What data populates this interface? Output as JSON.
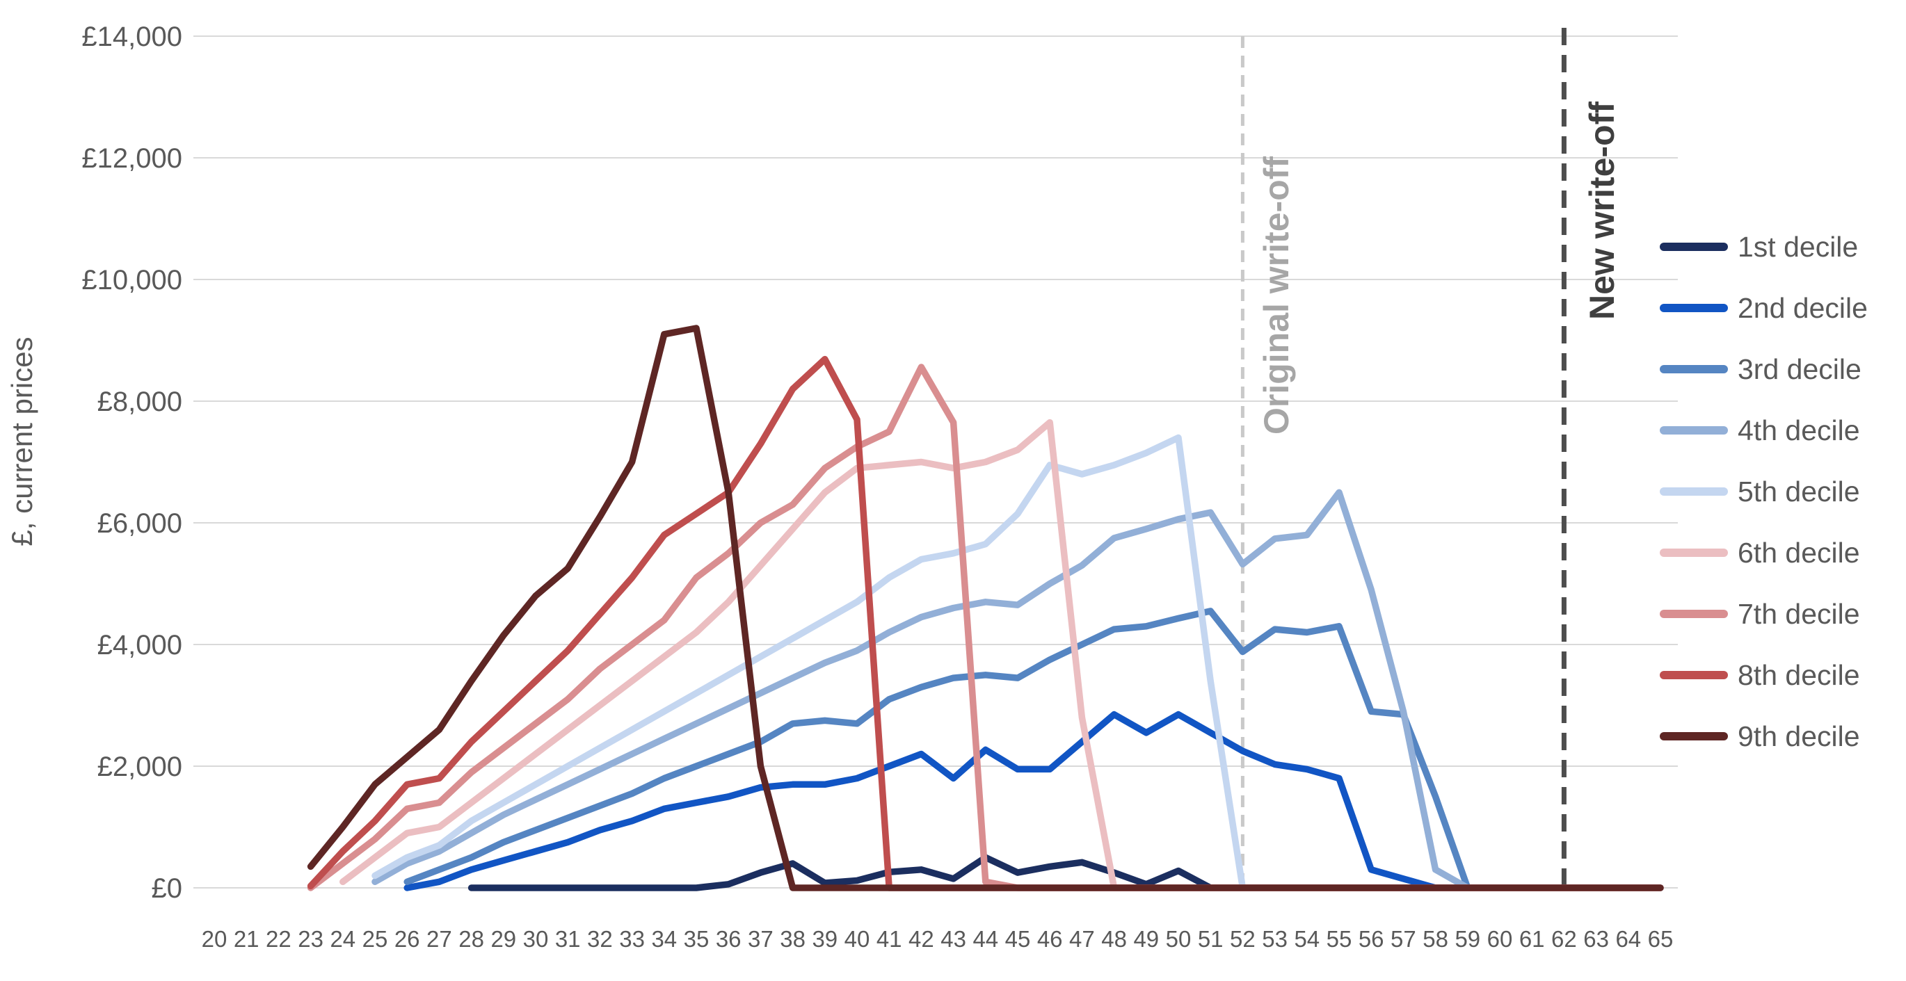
{
  "chart_data": {
    "type": "line",
    "title": "",
    "xlabel": "",
    "ylabel": "£, current prices",
    "ylim": [
      0,
      14000
    ],
    "y_tick_step": 2000,
    "y_tick_labels": [
      "£0",
      "£2,000",
      "£4,000",
      "£6,000",
      "£8,000",
      "£10,000",
      "£12,000",
      "£14,000"
    ],
    "x": [
      20,
      21,
      22,
      23,
      24,
      25,
      26,
      27,
      28,
      29,
      30,
      31,
      32,
      33,
      34,
      35,
      36,
      37,
      38,
      39,
      40,
      41,
      42,
      43,
      44,
      45,
      46,
      47,
      48,
      49,
      50,
      51,
      52,
      53,
      54,
      55,
      56,
      57,
      58,
      59,
      60,
      61,
      62,
      63,
      64,
      65
    ],
    "grid": true,
    "legend_position": "right",
    "annotations": [
      {
        "label": "Original write-off",
        "x": 52,
        "line_color": "#c9c9c9",
        "label_color": "#a6a6a6",
        "style": "dashed"
      },
      {
        "label": "New write-off",
        "x": 62,
        "line_color": "#4d4d4d",
        "label_color": "#3f3f3f",
        "style": "dashed"
      }
    ],
    "series": [
      {
        "name": "1st decile",
        "color": "#1b2e5f",
        "values": [
          null,
          null,
          null,
          null,
          null,
          null,
          null,
          null,
          0,
          0,
          0,
          0,
          0,
          0,
          0,
          0,
          60,
          250,
          400,
          80,
          120,
          260,
          300,
          150,
          500,
          250,
          350,
          420,
          250,
          60,
          280,
          0,
          0,
          0,
          0,
          0,
          0,
          0,
          0,
          0,
          0,
          0,
          0,
          0,
          0,
          0
        ]
      },
      {
        "name": "2nd decile",
        "color": "#1155c4",
        "values": [
          null,
          null,
          null,
          null,
          null,
          null,
          0,
          100,
          300,
          450,
          600,
          750,
          950,
          1100,
          1300,
          1400,
          1500,
          1650,
          1700,
          1700,
          1800,
          2000,
          2200,
          1800,
          2270,
          1950,
          1950,
          2400,
          2850,
          2550,
          2850,
          2550,
          2250,
          2030,
          1950,
          1800,
          300,
          150,
          0,
          0,
          0,
          0,
          0,
          0,
          0,
          0
        ]
      },
      {
        "name": "3rd decile",
        "color": "#5585c2",
        "values": [
          null,
          null,
          null,
          null,
          null,
          null,
          100,
          300,
          500,
          750,
          950,
          1150,
          1350,
          1550,
          1800,
          2000,
          2200,
          2400,
          2700,
          2750,
          2700,
          3100,
          3300,
          3450,
          3500,
          3450,
          3750,
          4000,
          4250,
          4300,
          4430,
          4550,
          3880,
          4250,
          4200,
          4300,
          2900,
          2850,
          1500,
          0,
          0,
          0,
          0,
          0,
          0,
          0
        ]
      },
      {
        "name": "4th decile",
        "color": "#92afd7",
        "values": [
          null,
          null,
          null,
          null,
          null,
          100,
          400,
          600,
          900,
          1200,
          1450,
          1700,
          1950,
          2200,
          2450,
          2700,
          2950,
          3200,
          3450,
          3700,
          3900,
          4200,
          4450,
          4600,
          4700,
          4650,
          5000,
          5300,
          5750,
          5900,
          6060,
          6170,
          5320,
          5740,
          5800,
          6500,
          4900,
          2900,
          300,
          0,
          0,
          0,
          0,
          0,
          0,
          0
        ]
      },
      {
        "name": "5th decile",
        "color": "#c4d6f0",
        "values": [
          null,
          null,
          null,
          null,
          null,
          200,
          500,
          700,
          1100,
          1400,
          1700,
          2000,
          2300,
          2600,
          2900,
          3200,
          3500,
          3800,
          4100,
          4400,
          4700,
          5100,
          5400,
          5500,
          5650,
          6150,
          6950,
          6800,
          6950,
          7150,
          7400,
          3400,
          0,
          0,
          0,
          0,
          0,
          0,
          0,
          0,
          0,
          0,
          0,
          0,
          0,
          0
        ]
      },
      {
        "name": "6th decile",
        "color": "#ebbec1",
        "values": [
          null,
          null,
          null,
          null,
          100,
          500,
          900,
          1000,
          1400,
          1800,
          2200,
          2600,
          3000,
          3400,
          3800,
          4200,
          4700,
          5300,
          5900,
          6500,
          6900,
          6950,
          7000,
          6900,
          7000,
          7200,
          7650,
          2800,
          0,
          0,
          0,
          0,
          0,
          0,
          0,
          0,
          0,
          0,
          0,
          0,
          0,
          0,
          0,
          0,
          0,
          0
        ]
      },
      {
        "name": "7th decile",
        "color": "#d98e90",
        "values": [
          null,
          null,
          null,
          0,
          400,
          800,
          1300,
          1400,
          1900,
          2300,
          2700,
          3100,
          3600,
          4000,
          4400,
          5100,
          5500,
          6000,
          6300,
          6900,
          7250,
          7500,
          8560,
          7650,
          100,
          0,
          0,
          0,
          0,
          0,
          0,
          0,
          0,
          0,
          0,
          0,
          0,
          0,
          0,
          0,
          0,
          0,
          0,
          0,
          0,
          0
        ]
      },
      {
        "name": "8th decile",
        "color": "#bf4e4e",
        "values": [
          null,
          null,
          null,
          30,
          600,
          1100,
          1700,
          1800,
          2400,
          2900,
          3400,
          3900,
          4500,
          5100,
          5800,
          6150,
          6500,
          7300,
          8200,
          8690,
          7700,
          0,
          0,
          0,
          0,
          0,
          0,
          0,
          0,
          0,
          0,
          0,
          0,
          0,
          0,
          0,
          0,
          0,
          0,
          0,
          0,
          0,
          0,
          0,
          0,
          0
        ]
      },
      {
        "name": "9th decile",
        "color": "#5e2624",
        "values": [
          null,
          null,
          null,
          350,
          1000,
          1700,
          2150,
          2600,
          3400,
          4150,
          4800,
          5250,
          6100,
          7000,
          9100,
          9200,
          6500,
          2000,
          0,
          0,
          0,
          0,
          0,
          0,
          0,
          0,
          0,
          0,
          0,
          0,
          0,
          0,
          0,
          0,
          0,
          0,
          0,
          0,
          0,
          0,
          0,
          0,
          0,
          0,
          0,
          0
        ]
      }
    ]
  }
}
